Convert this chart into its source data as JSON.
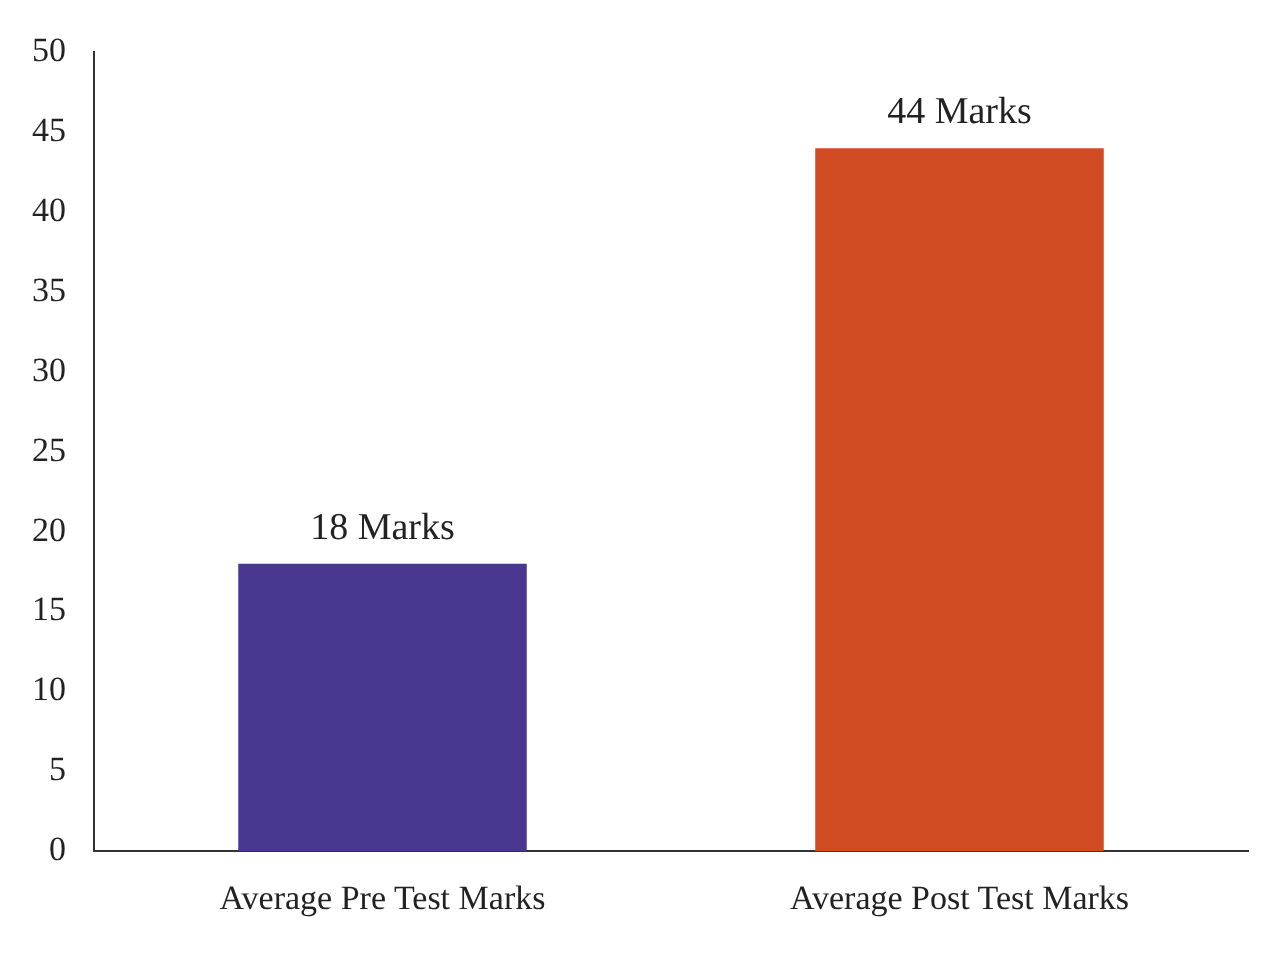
{
  "chart_data": {
    "type": "bar",
    "categories": [
      "Average Pre Test Marks",
      "Average Post Test Marks"
    ],
    "values": [
      18,
      44
    ],
    "colors": [
      "#4a3790",
      "#d04a22"
    ],
    "value_labels": [
      "18 Marks",
      "44 Marks"
    ],
    "ylim": [
      0,
      50
    ],
    "yticks": [
      0,
      5,
      10,
      15,
      20,
      25,
      30,
      35,
      40,
      45,
      50
    ],
    "grid": false,
    "legend": false
  }
}
